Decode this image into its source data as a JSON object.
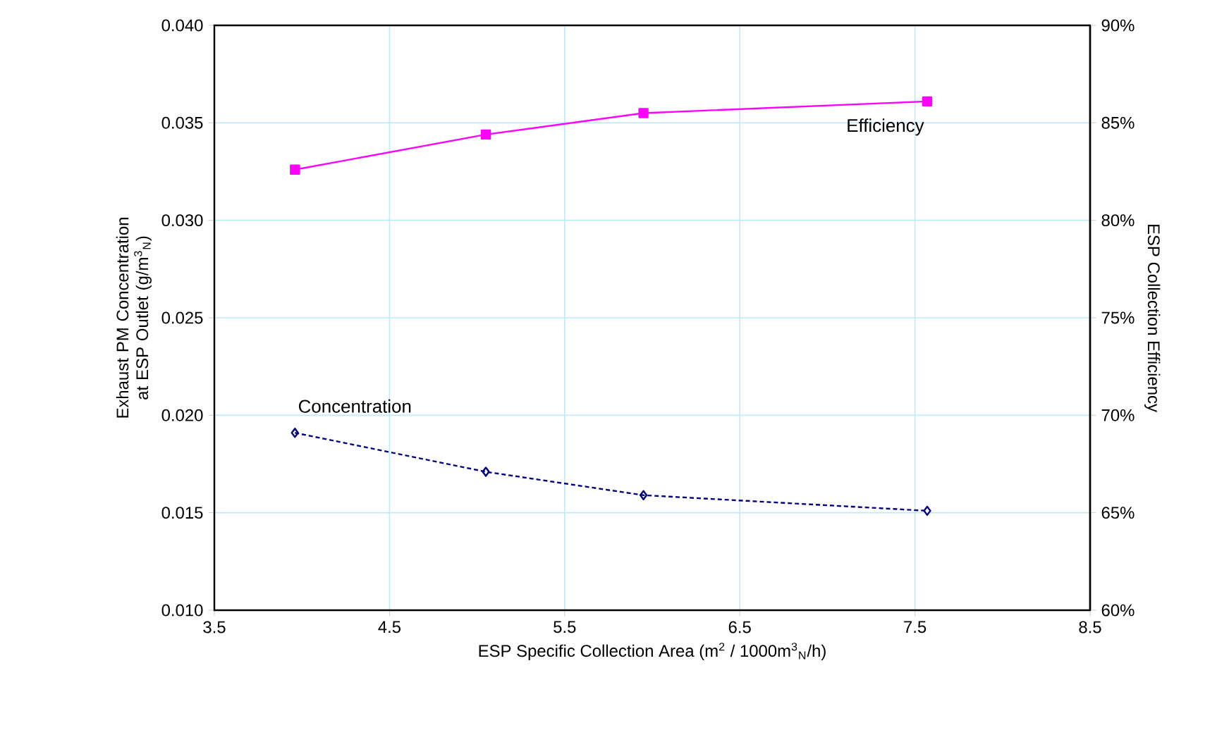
{
  "chart_data": {
    "type": "line",
    "xlabel": "ESP Specific Collection Area (m$^{2}$ / 1000m$^{3}$$_{N}$/h)",
    "ylabel": "Exhaust PM Concentration at ESP Outlet (g/m$^{3}$$_{N}$)",
    "y2label": "ESP Collection Efficiency",
    "xlim": [
      3.5,
      8.5
    ],
    "xticks": [
      3.5,
      4.5,
      5.5,
      6.5,
      7.5,
      8.5
    ],
    "ylim": [
      0.01,
      0.04
    ],
    "yticks": [
      {
        "value": 0.01,
        "label": "0.010"
      },
      {
        "value": 0.015,
        "label": "0.015"
      },
      {
        "value": 0.02,
        "label": "0.020"
      },
      {
        "value": 0.025,
        "label": "0.025"
      },
      {
        "value": 0.03,
        "label": "0.030"
      },
      {
        "value": 0.035,
        "label": "0.035"
      },
      {
        "value": 0.04,
        "label": "0.040"
      }
    ],
    "y2lim": [
      60,
      90
    ],
    "y2ticks": [
      {
        "value": 60,
        "label": "60%"
      },
      {
        "value": 65,
        "label": "65%"
      },
      {
        "value": 70,
        "label": "70%"
      },
      {
        "value": 75,
        "label": "75%"
      },
      {
        "value": 80,
        "label": "80%"
      },
      {
        "value": 85,
        "label": "85%"
      },
      {
        "value": 90,
        "label": "90%"
      }
    ],
    "grid": true,
    "series": [
      {
        "name": "Concentration",
        "color": "#000080",
        "marker": "diamond",
        "line_style": "dashed",
        "x": [
          3.96,
          5.05,
          5.95,
          7.57
        ],
        "values": [
          0.0191,
          0.0171,
          0.0159,
          0.0151
        ]
      },
      {
        "name": "Efficiency",
        "color": "#ff00ff",
        "marker": "square",
        "line_style": "solid",
        "axis": "y2",
        "x": [
          3.96,
          5.05,
          5.95,
          7.57
        ],
        "values": [
          82.6,
          84.4,
          85.5,
          86.1
        ]
      }
    ]
  }
}
